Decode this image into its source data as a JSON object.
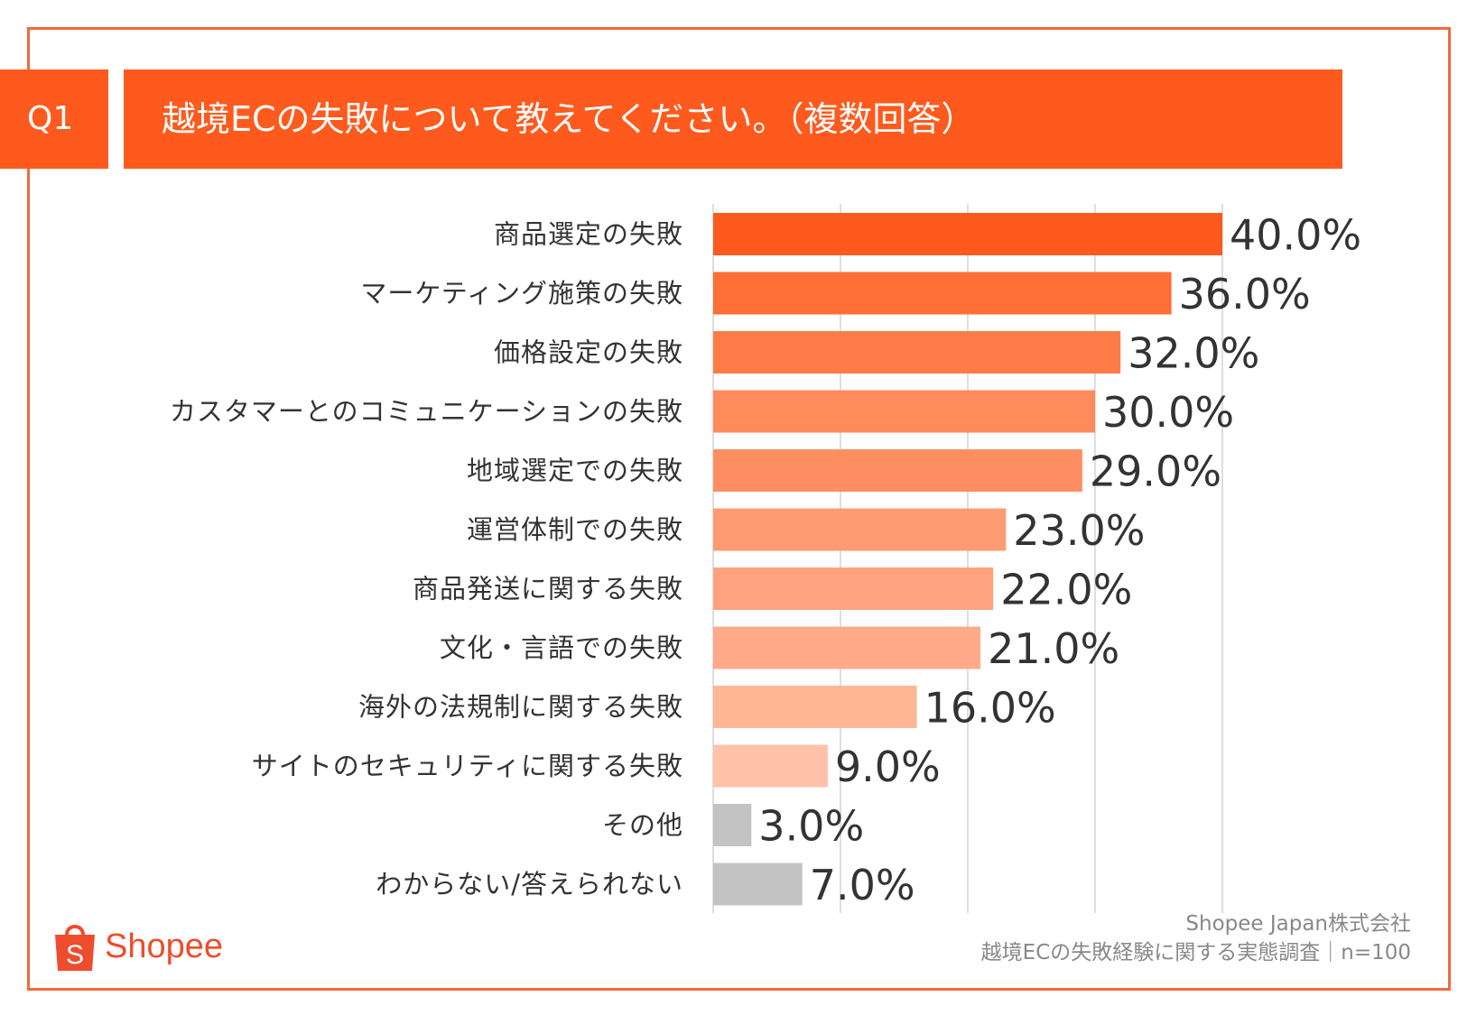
{
  "header": {
    "badge": "Q1",
    "title": "越境ECの失敗について教えてください。（複数回答）"
  },
  "chart_data": {
    "type": "bar",
    "orientation": "horizontal",
    "categories": [
      "商品選定の失敗",
      "マーケティング施策の失敗",
      "価格設定の失敗",
      "カスタマーとのコミュニケーションの失敗",
      "地域選定での失敗",
      "運営体制での失敗",
      "商品発送に関する失敗",
      "文化・言語での失敗",
      "海外の法規制に関する失敗",
      "サイトのセキュリティに関する失敗",
      "その他",
      "わからない/答えられない"
    ],
    "values": [
      40.0,
      36.0,
      32.0,
      30.0,
      29.0,
      23.0,
      22.0,
      21.0,
      16.0,
      9.0,
      3.0,
      7.0
    ],
    "value_labels": [
      "40.0%",
      "36.0%",
      "32.0%",
      "30.0%",
      "29.0%",
      "23.0%",
      "22.0%",
      "21.0%",
      "16.0%",
      "9.0%",
      "3.0%",
      "7.0%"
    ],
    "colors": [
      "#fe5a1d",
      "#ff6e35",
      "#ff7c48",
      "#ff8a5c",
      "#ff8f62",
      "#ff9b74",
      "#ffa27d",
      "#ffaa88",
      "#ffb695",
      "#ffc2a9",
      "#c3c3c3",
      "#c3c3c3"
    ],
    "gridline_color": "#d4d4d4",
    "xlim": [
      0,
      40
    ],
    "grid": true,
    "title": "",
    "xlabel": "",
    "ylabel": ""
  },
  "source": {
    "line1": "Shopee Japan株式会社",
    "line2": "越境ECの失敗経験に関する実態調査｜n=100"
  },
  "logo": {
    "text": "Shopee",
    "letter": "S",
    "icon": "shopping-bag-icon"
  }
}
